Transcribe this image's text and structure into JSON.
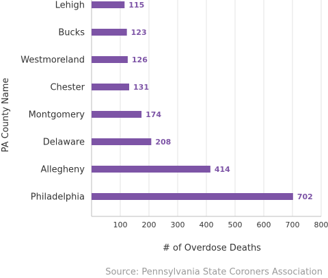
{
  "chart_data": {
    "type": "bar",
    "orientation": "horizontal",
    "categories": [
      "Lehigh",
      "Bucks",
      "Westmoreland",
      "Chester",
      "Montgomery",
      "Delaware",
      "Allegheny",
      "Philadelphia"
    ],
    "values": [
      115,
      123,
      126,
      131,
      174,
      208,
      414,
      702
    ],
    "xlabel": "# of Overdose Deaths",
    "ylabel": "PA County Name",
    "xlim": [
      0,
      800
    ],
    "xticks": [
      100,
      200,
      300,
      400,
      500,
      600,
      700,
      800
    ],
    "grid": "vertical",
    "bar_color": "#7d54a6",
    "value_label_color": "#7d54a6",
    "source": "Source: Pennsylvania State Coroners Association"
  }
}
